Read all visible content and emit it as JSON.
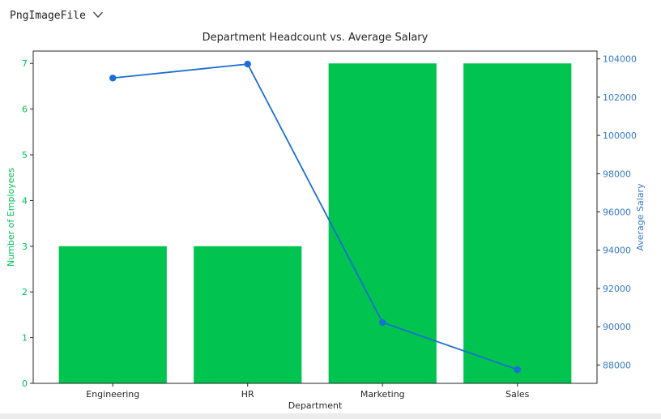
{
  "header": {
    "output_type_label": "PngImageFile",
    "chevron_icon": "chevron-down"
  },
  "chart_data": {
    "type": "bar",
    "subtype": "dual-axis bar + line combo",
    "title": "Department Headcount vs. Average Salary",
    "xlabel": "Department",
    "categories": [
      "Engineering",
      "HR",
      "Marketing",
      "Sales"
    ],
    "series": [
      {
        "name": "Number of Employees",
        "type": "bar",
        "axis": "left",
        "color": "#00c44f",
        "values": [
          3,
          3,
          7,
          7
        ]
      },
      {
        "name": "Average Salary",
        "type": "line",
        "axis": "right",
        "color": "#1b6ed2",
        "marker": "circle",
        "values": [
          103000,
          103730,
          90220,
          87760
        ]
      }
    ],
    "left_axis": {
      "label": "Number of Employees",
      "color": "#00bf53",
      "ticks": [
        0,
        1,
        2,
        3,
        4,
        5,
        6,
        7
      ],
      "range": [
        0,
        7.27
      ]
    },
    "right_axis": {
      "label": "Average Salary",
      "color": "#3579cb",
      "ticks": [
        88000,
        90000,
        92000,
        94000,
        96000,
        98000,
        100000,
        102000,
        104000
      ],
      "range": [
        87040,
        104410
      ]
    },
    "x_range": [
      -0.59,
      3.59
    ],
    "bar_width": 0.8,
    "grid": false,
    "legend": "none",
    "frame_color": "#262626",
    "background": "#ffffff"
  }
}
